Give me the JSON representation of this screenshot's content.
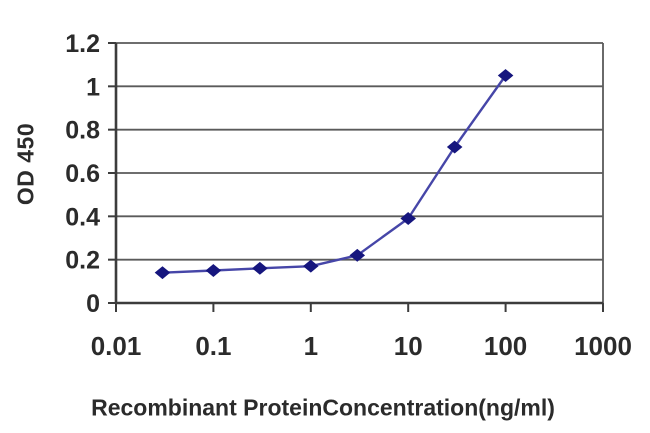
{
  "chart_data": {
    "type": "line",
    "title": "",
    "xlabel": "Recombinant ProteinConcentration(ng/ml)",
    "ylabel": "OD 450",
    "x_scale": "log",
    "xlim": [
      0.01,
      1000
    ],
    "ylim": [
      0,
      1.2
    ],
    "x_ticks": [
      "0.01",
      "0.1",
      "1",
      "10",
      "100",
      "1000"
    ],
    "y_ticks": [
      "0",
      "0.2",
      "0.4",
      "0.6",
      "0.8",
      "1",
      "1.2"
    ],
    "grid": "horizontal",
    "legend": "none",
    "series": [
      {
        "name": "OD 450",
        "x": [
          0.03,
          0.1,
          0.3,
          1,
          3,
          10,
          30,
          100
        ],
        "values": [
          0.14,
          0.15,
          0.16,
          0.17,
          0.22,
          0.39,
          0.72,
          1.05
        ],
        "marker": "diamond"
      }
    ],
    "colors": {
      "line": "#4646a8",
      "marker": "#16167e",
      "grid": "#5a5a5a",
      "axis": "#3c3c3c",
      "text": "#2b2b2b",
      "background": "#ffffff"
    }
  }
}
